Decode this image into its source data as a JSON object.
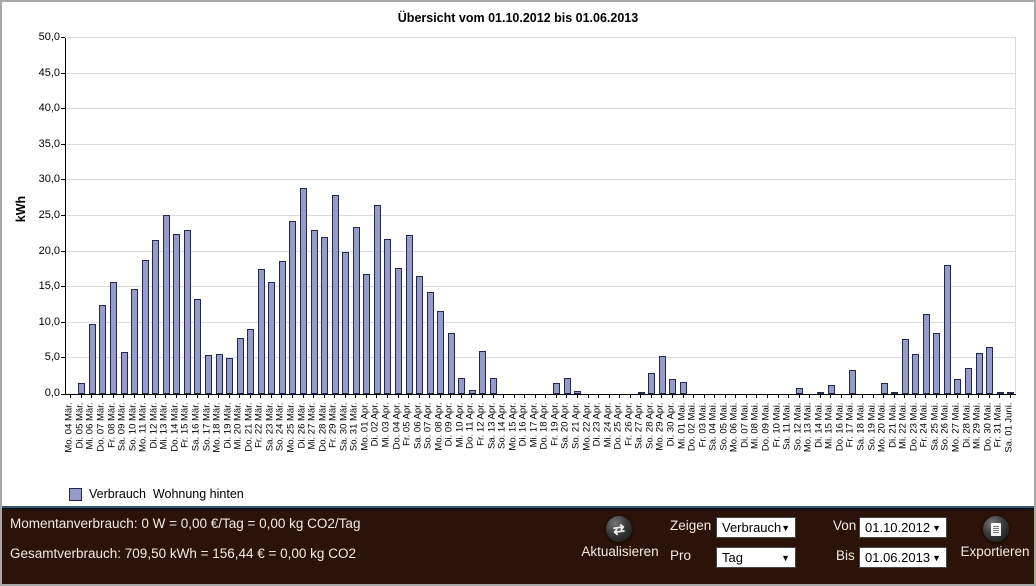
{
  "window": {
    "title": "Übersicht vom 01.10.2012 bis 01.06.2013"
  },
  "chart_data": {
    "type": "bar",
    "title": "Übersicht vom 01.10.2012 bis 01.06.2013",
    "xlabel": "",
    "ylabel": "kWh",
    "ylim": [
      0,
      50
    ],
    "ytick_step": 5,
    "grid": "horizontal",
    "legend_position": "bottom-left",
    "series_name": "Verbrauch  Wohnung hinten",
    "bar_color": "#959cc9",
    "bar_border_color": "#23284d",
    "categories": [
      "Mo. 04 Mär.",
      "Di. 05 Mär.",
      "Mi. 06 Mär.",
      "Do. 07 Mär.",
      "Fr. 08 Mär.",
      "Sa. 09 Mär.",
      "So. 10 Mär.",
      "Mo. 11 Mär.",
      "Di. 12 Mär.",
      "Mi. 13 Mär.",
      "Do. 14 Mär.",
      "Fr. 15 Mär.",
      "Sa. 16 Mär.",
      "So. 17 Mär.",
      "Mo. 18 Mär.",
      "Di. 19 Mär.",
      "Mi. 20 Mär.",
      "Do. 21 Mär.",
      "Fr. 22 Mär.",
      "Sa. 23 Mär.",
      "So. 24 Mär.",
      "Mo. 25 Mär.",
      "Di. 26 Mär.",
      "Mi. 27 Mär.",
      "Do. 28 Mär.",
      "Fr. 29 Mär.",
      "Sa. 30 Mär.",
      "So. 31 Mär.",
      "Mo. 01 Apr.",
      "Di. 02 Apr.",
      "Mi. 03 Apr.",
      "Do. 04 Apr.",
      "Fr. 05 Apr.",
      "Sa. 06 Apr.",
      "So. 07 Apr.",
      "Mo. 08 Apr.",
      "Di. 09 Apr.",
      "Mi. 10 Apr.",
      "Do. 11 Apr.",
      "Fr. 12 Apr.",
      "Sa. 13 Apr.",
      "So. 14 Apr.",
      "Mo. 15 Apr.",
      "Di. 16 Apr.",
      "Mi. 17 Apr.",
      "Do. 18 Apr.",
      "Fr. 19 Apr.",
      "Sa. 20 Apr.",
      "So. 21 Apr.",
      "Mo. 22 Apr.",
      "Di. 23 Apr.",
      "Mi. 24 Apr.",
      "Do. 25 Apr.",
      "Fr. 26 Apr.",
      "Sa. 27 Apr.",
      "So. 28 Apr.",
      "Mo. 29 Apr.",
      "Di. 30 Apr.",
      "Mi. 01 Mai.",
      "Do. 02 Mai.",
      "Fr. 03 Mai.",
      "Sa. 04 Mai.",
      "So. 05 Mai.",
      "Mo. 06 Mai.",
      "Di. 07 Mai.",
      "Mi. 08 Mai.",
      "Do. 09 Mai.",
      "Fr. 10 Mai.",
      "Sa. 11 Mai.",
      "So. 12 Mai.",
      "Mo. 13 Mai.",
      "Di. 14 Mai.",
      "Mi. 15 Mai.",
      "Do. 16 Mai.",
      "Fr. 17 Mai.",
      "Sa. 18 Mai.",
      "So. 19 Mai.",
      "Mo. 20 Mai.",
      "Di. 21 Mai.",
      "Mi. 22 Mai.",
      "Do. 23 Mai.",
      "Fr. 24 Mai.",
      "Sa. 25 Mai.",
      "So. 26 Mai.",
      "Mo. 27 Mai.",
      "Di. 28 Mai.",
      "Mi. 29 Mai.",
      "Do. 30 Mai.",
      "Fr. 31 Mai.",
      "Sa. 01 Juni."
    ],
    "values": [
      0,
      1.5,
      9.8,
      12.5,
      15.8,
      5.9,
      14.7,
      18.8,
      21.6,
      25.2,
      22.5,
      23.1,
      13.3,
      5.5,
      5.6,
      5.1,
      7.9,
      9.2,
      17.5,
      15.8,
      18.7,
      24.3,
      28.9,
      23.1,
      22.0,
      28.0,
      19.9,
      23.5,
      16.9,
      26.5,
      21.8,
      17.7,
      22.4,
      16.6,
      14.3,
      11.6,
      8.5,
      2.2,
      0.6,
      6.0,
      2.3,
      0,
      0,
      0,
      0,
      0,
      1.5,
      2.3,
      0.4,
      0,
      0,
      0,
      0,
      0,
      0.3,
      3.0,
      5.3,
      2.1,
      1.7,
      0,
      0,
      0,
      0,
      0,
      0,
      0,
      0,
      0,
      0,
      0.9,
      0,
      0.2,
      1.3,
      0,
      3.4,
      0,
      0,
      1.6,
      0.3,
      7.7,
      5.6,
      11.3,
      8.6,
      18.1,
      2.1,
      3.7,
      5.8,
      6.6,
      0.2,
      0.1
    ]
  },
  "legend": {
    "label": "Verbrauch  Wohnung hinten"
  },
  "footer": {
    "line1": "Momentanverbrauch: 0 W = 0,00 €/Tag = 0,00 kg CO2/Tag",
    "line2": "Gesamtverbrauch: 709,50 kWh = 156,44 € = 0,00 kg CO2",
    "refresh_icon_glyph": "⇄",
    "refresh_label": "Aktualisieren",
    "zeigen_label": "Zeigen",
    "zeigen_value": "Verbrauch",
    "pro_label": "Pro",
    "pro_value": "Tag",
    "von_label": "Von",
    "von_value": "01.10.2012",
    "bis_label": "Bis",
    "bis_value": "01.06.2013",
    "export_label": "Exportieren",
    "dropdown_arrow": "▼"
  }
}
